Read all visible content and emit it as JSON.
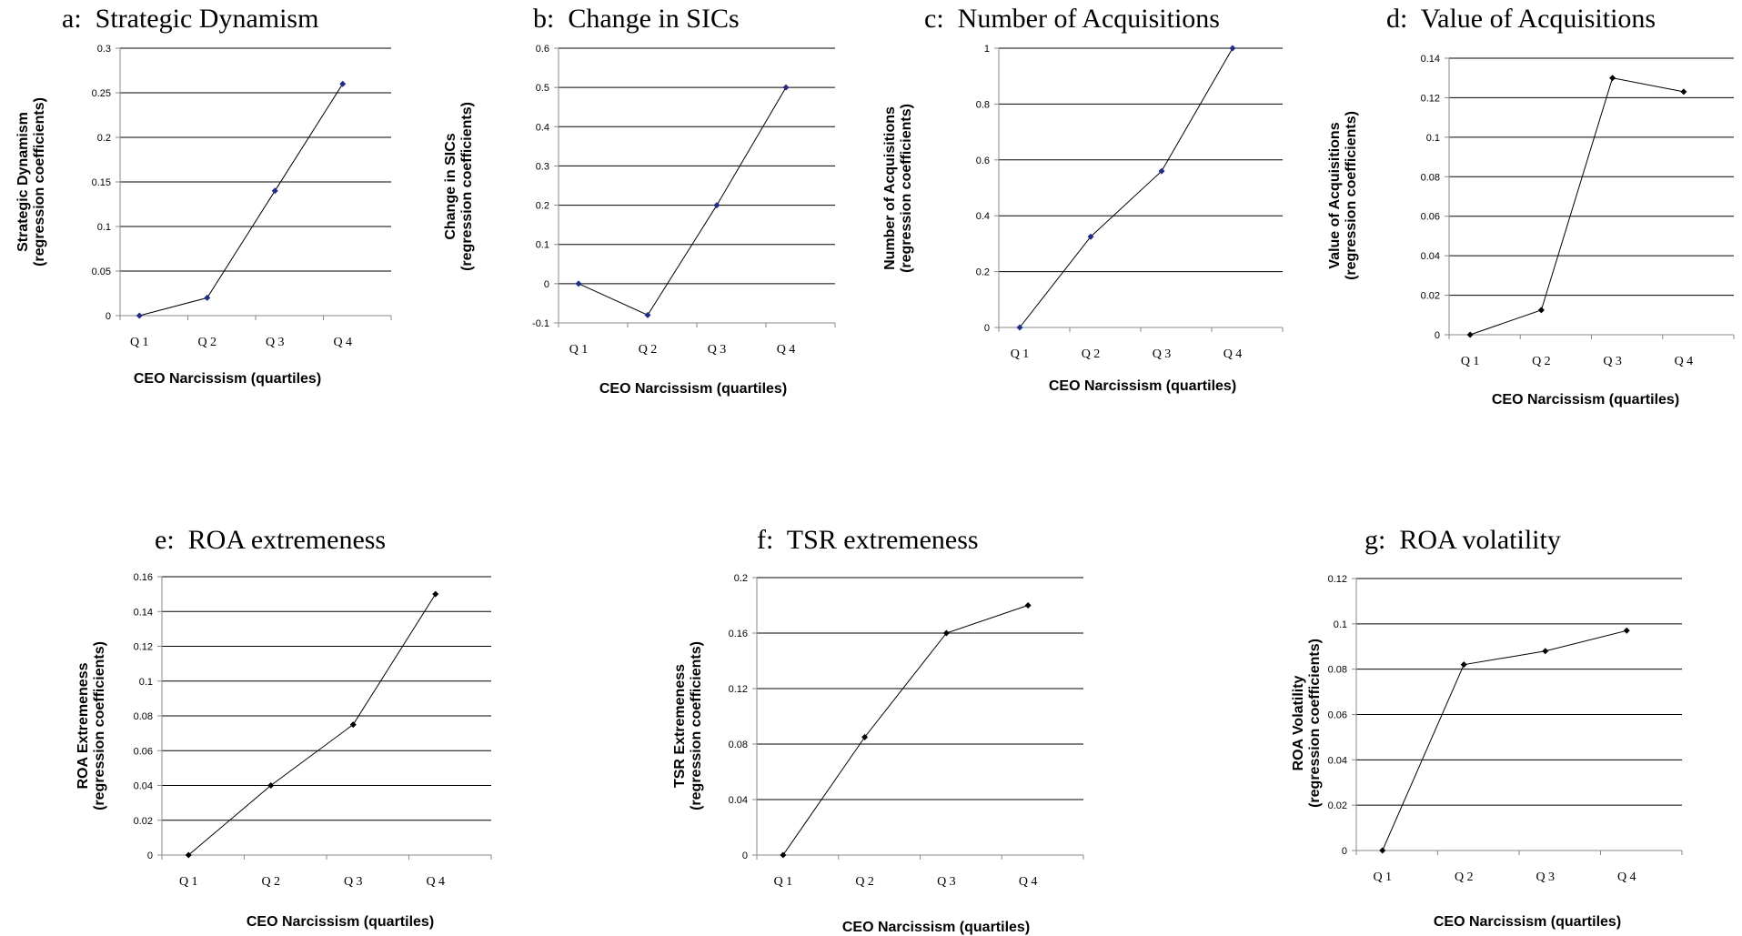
{
  "chart_data": [
    {
      "type": "line",
      "panel": "a:",
      "title": "Strategic Dynamism",
      "xlabel": "CEO Narcissism (quartiles)",
      "ylabel": [
        "Strategic Dynamism",
        "(regression coefficients)"
      ],
      "categories": [
        "Q 1",
        "Q 2",
        "Q 3",
        "Q 4"
      ],
      "values": [
        0,
        0.02,
        0.14,
        0.26
      ],
      "ylim": [
        0,
        0.3
      ],
      "yticks": [
        "0",
        "0.05",
        "0.1",
        "0.15",
        "0.2",
        "0.25",
        "0.3"
      ],
      "marker_color": "#1f2d86",
      "grid": true
    },
    {
      "type": "line",
      "panel": "b:",
      "title": "Change in SICs",
      "xlabel": "CEO Narcissism (quartiles)",
      "ylabel": [
        "Change in SICs",
        "(regression coefficients)"
      ],
      "categories": [
        "Q 1",
        "Q 2",
        "Q 3",
        "Q 4"
      ],
      "values": [
        0,
        -0.08,
        0.2,
        0.5
      ],
      "ylim": [
        -0.1,
        0.6
      ],
      "yticks": [
        "-0.1",
        "0",
        "0.1",
        "0.2",
        "0.3",
        "0.4",
        "0.5",
        "0.6"
      ],
      "marker_color": "#1f2d86",
      "grid": true
    },
    {
      "type": "line",
      "panel": "c:",
      "title": "Number of Acquisitions",
      "xlabel": "CEO Narcissism (quartiles)",
      "ylabel": [
        "Number of Acquisitions",
        "(regression coefficients)"
      ],
      "categories": [
        "Q 1",
        "Q 2",
        "Q 3",
        "Q 4"
      ],
      "values": [
        0,
        0.325,
        0.56,
        1.0
      ],
      "ylim": [
        0,
        1
      ],
      "yticks": [
        "0",
        "0.2",
        "0.4",
        "0.6",
        "0.8",
        "1"
      ],
      "marker_color": "#1f2d86",
      "grid": true
    },
    {
      "type": "line",
      "panel": "d:",
      "title": "Value of Acquisitions",
      "xlabel": "CEO Narcissism (quartiles)",
      "ylabel": [
        "Value of Acquisitions",
        "(regression coefficients)"
      ],
      "categories": [
        "Q 1",
        "Q 2",
        "Q 3",
        "Q 4"
      ],
      "values": [
        0,
        0.0125,
        0.13,
        0.123
      ],
      "ylim": [
        0,
        0.14
      ],
      "yticks": [
        "0",
        "0.02",
        "0.04",
        "0.06",
        "0.08",
        "0.1",
        "0.12",
        "0.14"
      ],
      "marker_color": "#000000",
      "grid": true
    },
    {
      "type": "line",
      "panel": "e:",
      "title": "ROA extremeness",
      "xlabel": "CEO Narcissism (quartiles)",
      "ylabel": [
        "ROA Extremeness",
        "(regression coefficients)"
      ],
      "categories": [
        "Q 1",
        "Q 2",
        "Q 3",
        "Q 4"
      ],
      "values": [
        0,
        0.04,
        0.075,
        0.15
      ],
      "ylim": [
        0,
        0.16
      ],
      "yticks": [
        "0",
        "0.02",
        "0.04",
        "0.06",
        "0.08",
        "0.1",
        "0.12",
        "0.14",
        "0.16"
      ],
      "marker_color": "#000000",
      "grid": true
    },
    {
      "type": "line",
      "panel": "f:",
      "title": "TSR extremeness",
      "xlabel": "CEO Narcissism (quartiles)",
      "ylabel": [
        "TSR Extremeness",
        "(regression coefficients)"
      ],
      "categories": [
        "Q 1",
        "Q 2",
        "Q 3",
        "Q 4"
      ],
      "values": [
        0,
        0.085,
        0.16,
        0.18
      ],
      "ylim": [
        0,
        0.2
      ],
      "yticks": [
        "0",
        "0.04",
        "0.08",
        "0.12",
        "0.16",
        "0.2"
      ],
      "marker_color": "#000000",
      "grid": true
    },
    {
      "type": "line",
      "panel": "g:",
      "title": "ROA volatility",
      "xlabel": "CEO Narcissism (quartiles)",
      "ylabel": [
        "ROA Volatility",
        "(regression coefficients)"
      ],
      "categories": [
        "Q 1",
        "Q 2",
        "Q 3",
        "Q 4"
      ],
      "values": [
        0,
        0.082,
        0.088,
        0.097
      ],
      "ylim": [
        0,
        0.12
      ],
      "yticks": [
        "0",
        "0.02",
        "0.04",
        "0.06",
        "0.08",
        "0.1",
        "0.12"
      ],
      "marker_color": "#000000",
      "grid": true
    }
  ]
}
